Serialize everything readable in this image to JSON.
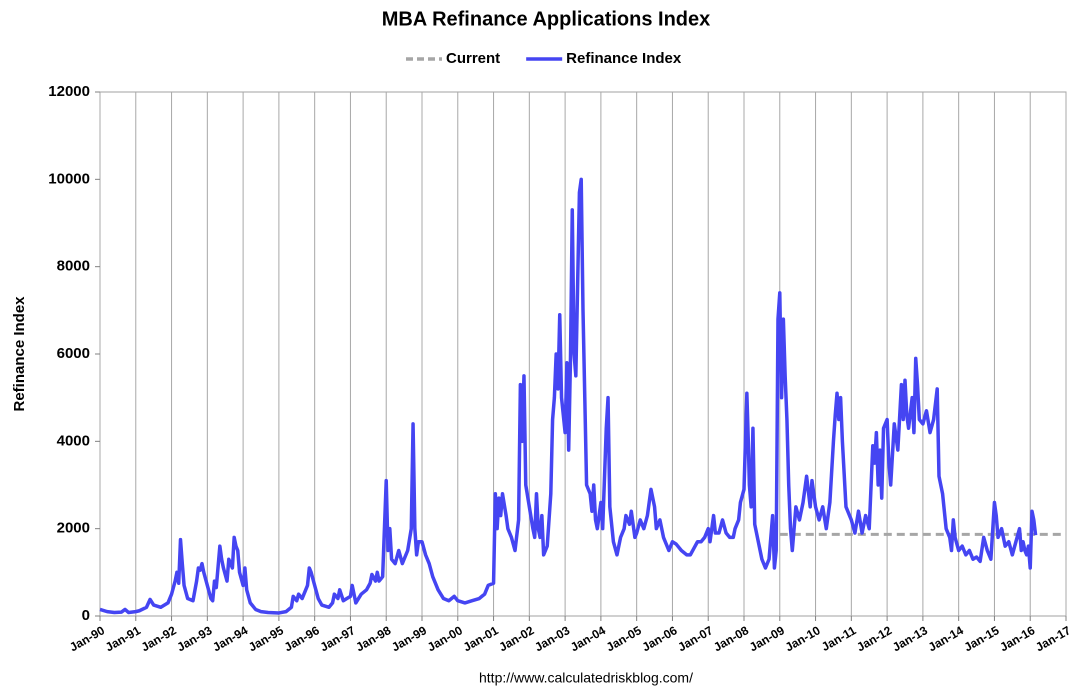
{
  "chart_data": {
    "type": "line",
    "title": "MBA Refinance Applications Index",
    "ylabel": "Refinance Index",
    "source": "http://www.calculatedriskblog.com/",
    "xlim": [
      1990,
      2017
    ],
    "xticks": [
      {
        "value": 1990,
        "label": "Jan-90"
      },
      {
        "value": 1991,
        "label": "Jan-91"
      },
      {
        "value": 1992,
        "label": "Jan-92"
      },
      {
        "value": 1993,
        "label": "Jan-93"
      },
      {
        "value": 1994,
        "label": "Jan-94"
      },
      {
        "value": 1995,
        "label": "Jan-95"
      },
      {
        "value": 1996,
        "label": "Jan-96"
      },
      {
        "value": 1997,
        "label": "Jan-97"
      },
      {
        "value": 1998,
        "label": "Jan-98"
      },
      {
        "value": 1999,
        "label": "Jan-99"
      },
      {
        "value": 2000,
        "label": "Jan-00"
      },
      {
        "value": 2001,
        "label": "Jan-01"
      },
      {
        "value": 2002,
        "label": "Jan-02"
      },
      {
        "value": 2003,
        "label": "Jan-03"
      },
      {
        "value": 2004,
        "label": "Jan-04"
      },
      {
        "value": 2005,
        "label": "Jan-05"
      },
      {
        "value": 2006,
        "label": "Jan-06"
      },
      {
        "value": 2007,
        "label": "Jan-07"
      },
      {
        "value": 2008,
        "label": "Jan-08"
      },
      {
        "value": 2009,
        "label": "Jan-09"
      },
      {
        "value": 2010,
        "label": "Jan-10"
      },
      {
        "value": 2011,
        "label": "Jan-11"
      },
      {
        "value": 2012,
        "label": "Jan-12"
      },
      {
        "value": 2013,
        "label": "Jan-13"
      },
      {
        "value": 2014,
        "label": "Jan-14"
      },
      {
        "value": 2015,
        "label": "Jan-15"
      },
      {
        "value": 2016,
        "label": "Jan-16"
      },
      {
        "value": 2017,
        "label": "Jan-17"
      }
    ],
    "ylim": [
      0,
      12000
    ],
    "yticks": [
      0,
      2000,
      4000,
      6000,
      8000,
      10000,
      12000
    ],
    "grid": "x",
    "series": [
      {
        "name": "Current",
        "color": "#a6a6a6",
        "dashed": true,
        "x": [
          2009,
          2017
        ],
        "values": [
          1870,
          1870
        ]
      },
      {
        "name": "Refinance Index",
        "color": "#4545f2",
        "dashed": false,
        "x": [
          1990,
          1990.2,
          1990.4,
          1990.6,
          1990.7,
          1990.8,
          1991,
          1991.1,
          1991.3,
          1991.4,
          1991.5,
          1991.7,
          1991.9,
          1992,
          1992.1,
          1992.15,
          1992.2,
          1992.25,
          1992.3,
          1992.35,
          1992.45,
          1992.6,
          1992.7,
          1992.75,
          1992.8,
          1992.85,
          1992.9,
          1993,
          1993.1,
          1993.15,
          1993.2,
          1993.25,
          1993.35,
          1993.4,
          1993.45,
          1993.55,
          1993.6,
          1993.7,
          1993.75,
          1993.8,
          1993.85,
          1993.9,
          1994,
          1994.05,
          1994.1,
          1994.2,
          1994.35,
          1994.5,
          1994.7,
          1995,
          1995.2,
          1995.35,
          1995.4,
          1995.5,
          1995.55,
          1995.65,
          1995.75,
          1995.8,
          1995.85,
          1995.9,
          1996,
          1996.1,
          1996.2,
          1996.4,
          1996.5,
          1996.55,
          1996.65,
          1996.7,
          1996.8,
          1996.9,
          1997,
          1997.05,
          1997.15,
          1997.3,
          1997.45,
          1997.55,
          1997.6,
          1997.7,
          1997.75,
          1997.8,
          1997.9,
          1998,
          1998.05,
          1998.1,
          1998.15,
          1998.25,
          1998.35,
          1998.45,
          1998.6,
          1998.7,
          1998.75,
          1998.8,
          1998.85,
          1998.9,
          1999,
          1999.1,
          1999.2,
          1999.3,
          1999.45,
          1999.6,
          1999.75,
          1999.9,
          2000,
          2000.2,
          2000.4,
          2000.6,
          2000.75,
          2000.85,
          2001,
          2001.05,
          2001.1,
          2001.15,
          2001.2,
          2001.25,
          2001.35,
          2001.4,
          2001.5,
          2001.6,
          2001.7,
          2001.75,
          2001.8,
          2001.85,
          2001.9,
          2002,
          2002.1,
          2002.15,
          2002.2,
          2002.25,
          2002.3,
          2002.35,
          2002.4,
          2002.5,
          2002.6,
          2002.65,
          2002.7,
          2002.75,
          2002.8,
          2002.85,
          2002.9,
          2003,
          2003.05,
          2003.1,
          2003.15,
          2003.2,
          2003.25,
          2003.3,
          2003.4,
          2003.45,
          2003.5,
          2003.55,
          2003.6,
          2003.7,
          2003.75,
          2003.8,
          2003.85,
          2003.9,
          2004,
          2004.05,
          2004.15,
          2004.2,
          2004.25,
          2004.35,
          2004.45,
          2004.55,
          2004.65,
          2004.7,
          2004.8,
          2004.85,
          2004.95,
          2005,
          2005.1,
          2005.2,
          2005.3,
          2005.4,
          2005.5,
          2005.55,
          2005.65,
          2005.75,
          2005.9,
          2006,
          2006.1,
          2006.25,
          2006.4,
          2006.5,
          2006.6,
          2006.7,
          2006.8,
          2006.9,
          2007,
          2007.05,
          2007.15,
          2007.2,
          2007.3,
          2007.4,
          2007.5,
          2007.6,
          2007.7,
          2007.75,
          2007.85,
          2007.9,
          2008,
          2008.08,
          2008.12,
          2008.15,
          2008.2,
          2008.25,
          2008.3,
          2008.4,
          2008.45,
          2008.5,
          2008.6,
          2008.7,
          2008.8,
          2008.85,
          2008.9,
          2008.95,
          2009,
          2009.05,
          2009.1,
          2009.15,
          2009.2,
          2009.25,
          2009.3,
          2009.35,
          2009.45,
          2009.55,
          2009.65,
          2009.75,
          2009.85,
          2009.9,
          2010,
          2010.1,
          2010.2,
          2010.3,
          2010.4,
          2010.5,
          2010.55,
          2010.6,
          2010.65,
          2010.7,
          2010.75,
          2010.85,
          2011,
          2011.1,
          2011.2,
          2011.3,
          2011.4,
          2011.5,
          2011.6,
          2011.65,
          2011.7,
          2011.75,
          2011.8,
          2011.85,
          2011.9,
          2012,
          2012.05,
          2012.1,
          2012.2,
          2012.3,
          2012.4,
          2012.45,
          2012.5,
          2012.55,
          2012.6,
          2012.7,
          2012.75,
          2012.8,
          2012.85,
          2012.9,
          2013,
          2013.1,
          2013.2,
          2013.3,
          2013.4,
          2013.45,
          2013.55,
          2013.65,
          2013.75,
          2013.8,
          2013.85,
          2013.9,
          2014,
          2014.1,
          2014.2,
          2014.3,
          2014.4,
          2014.5,
          2014.6,
          2014.7,
          2014.8,
          2014.9,
          2015,
          2015.05,
          2015.1,
          2015.2,
          2015.3,
          2015.4,
          2015.5,
          2015.6,
          2015.7,
          2015.75,
          2015.8,
          2015.85,
          2015.9,
          2015.95,
          2016,
          2016.05,
          2016.1,
          2016.15
        ],
        "values": [
          150,
          100,
          80,
          90,
          150,
          80,
          100,
          120,
          200,
          380,
          250,
          200,
          300,
          500,
          800,
          1000,
          750,
          1750,
          1200,
          700,
          400,
          350,
          800,
          1100,
          1050,
          1200,
          1000,
          700,
          400,
          350,
          800,
          650,
          1600,
          1300,
          1100,
          800,
          1300,
          1100,
          1800,
          1600,
          1500,
          1000,
          700,
          1100,
          600,
          300,
          150,
          100,
          80,
          70,
          100,
          200,
          450,
          350,
          500,
          400,
          600,
          700,
          1100,
          1000,
          700,
          400,
          250,
          200,
          300,
          500,
          400,
          600,
          350,
          400,
          450,
          700,
          300,
          500,
          600,
          750,
          950,
          800,
          1000,
          800,
          900,
          3100,
          1500,
          2000,
          1300,
          1200,
          1500,
          1200,
          1500,
          2000,
          4400,
          2000,
          1400,
          1700,
          1700,
          1400,
          1200,
          900,
          600,
          400,
          350,
          450,
          350,
          300,
          350,
          400,
          500,
          700,
          750,
          2800,
          2000,
          2700,
          2300,
          2800,
          2300,
          2000,
          1800,
          1500,
          2200,
          5300,
          4000,
          5500,
          3000,
          2500,
          2000,
          1800,
          2800,
          2000,
          1800,
          2300,
          1400,
          1600,
          2800,
          4500,
          5000,
          6000,
          5200,
          6900,
          5000,
          4200,
          5800,
          3800,
          5900,
          9300,
          6000,
          5500,
          9700,
          10000,
          7000,
          5000,
          3000,
          2800,
          2400,
          3000,
          2200,
          2000,
          2600,
          2000,
          4300,
          5000,
          2500,
          1700,
          1400,
          1800,
          2000,
          2300,
          2100,
          2400,
          1800,
          1900,
          2200,
          2000,
          2300,
          2900,
          2500,
          2000,
          2200,
          1800,
          1500,
          1700,
          1650,
          1500,
          1400,
          1400,
          1550,
          1700,
          1700,
          1800,
          2000,
          1700,
          2300,
          1900,
          1900,
          2200,
          1900,
          1800,
          1800,
          2000,
          2200,
          2600,
          2900,
          5100,
          4000,
          3000,
          2500,
          4300,
          2100,
          1700,
          1500,
          1300,
          1100,
          1300,
          2300,
          1100,
          1500,
          6800,
          7400,
          5000,
          6800,
          5500,
          4500,
          3000,
          2000,
          1500,
          2500,
          2200,
          2600,
          3200,
          2500,
          3100,
          2500,
          2200,
          2500,
          2000,
          2600,
          4000,
          4600,
          5100,
          4500,
          5000,
          4000,
          2500,
          2200,
          1900,
          2400,
          1900,
          2300,
          2000,
          3900,
          3500,
          4200,
          3000,
          3800,
          2700,
          4300,
          4500,
          3500,
          3000,
          4400,
          3800,
          5300,
          4500,
          5400,
          4600,
          4300,
          5000,
          4200,
          5900,
          5300,
          4500,
          4400,
          4700,
          4200,
          4500,
          5200,
          3200,
          2800,
          2000,
          1800,
          1500,
          2200,
          1800,
          1500,
          1600,
          1400,
          1500,
          1300,
          1350,
          1250,
          1800,
          1500,
          1300,
          2600,
          2300,
          1800,
          2000,
          1600,
          1700,
          1400,
          1700,
          2000,
          1500,
          1700,
          1500,
          1400,
          1600,
          1100,
          2400,
          2200,
          1850
        ]
      }
    ]
  }
}
